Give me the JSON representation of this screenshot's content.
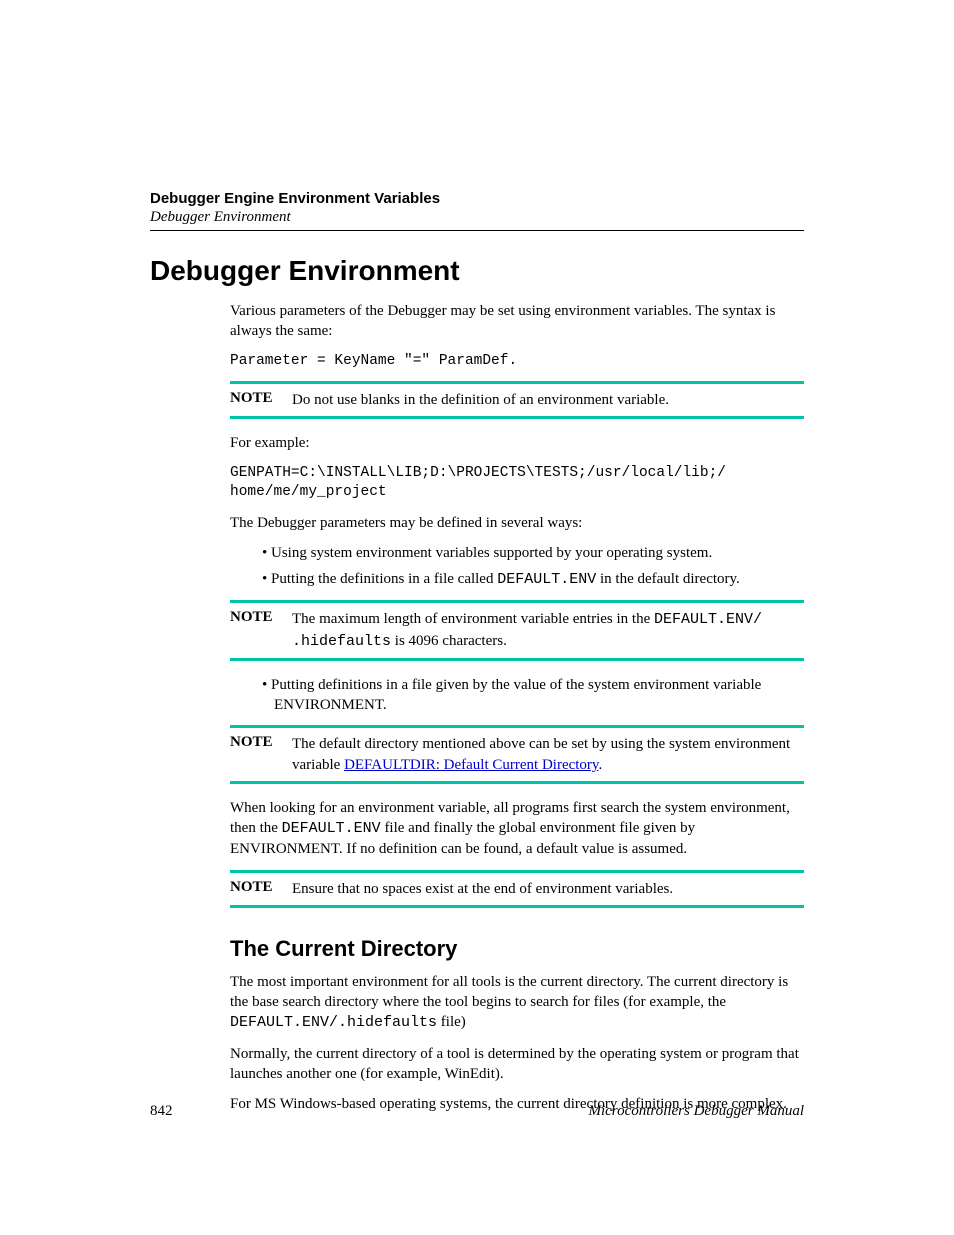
{
  "colors": {
    "note_rule": "#00c4a7",
    "link": "#0000cc",
    "text": "#000000",
    "background": "#ffffff"
  },
  "typography": {
    "body_family": "Times New Roman",
    "heading_family": "Arial",
    "code_family": "Courier New",
    "h1_size_pt": 21,
    "h2_size_pt": 17,
    "body_size_pt": 11,
    "code_size_pt": 11
  },
  "header": {
    "chapter": "Debugger Engine Environment Variables",
    "section": "Debugger Environment"
  },
  "h1": "Debugger Environment",
  "intro": "Various parameters of the Debugger may be set using environment variables. The syntax is always the same:",
  "syntax_code": "Parameter = KeyName \"=\" ParamDef.",
  "note1": {
    "label": "NOTE",
    "text": "Do not use blanks in the definition of an environment variable."
  },
  "example_lead": "For example:",
  "example_code": "GENPATH=C:\\INSTALL\\LIB;D:\\PROJECTS\\TESTS;/usr/local/lib;/\nhome/me/my_project",
  "ways_lead": "The Debugger parameters may be defined in several ways:",
  "bullets_a": {
    "0": "Using system environment variables supported by your operating system.",
    "1_pre": "Putting the definitions in a file called ",
    "1_code": "DEFAULT.ENV",
    "1_post": " in the default directory."
  },
  "note2": {
    "label": "NOTE",
    "text_pre": "The maximum length of environment variable entries in the ",
    "code": "DEFAULT.ENV/ .hidefaults",
    "text_post": " is 4096 characters."
  },
  "bullets_b": {
    "0": "Putting definitions in a file given by the value of the system environment variable ENVIRONMENT."
  },
  "note3": {
    "label": "NOTE",
    "text_pre": "The default directory mentioned above can be set by using the system environment variable ",
    "link_text": "DEFAULTDIR: Default Current Directory",
    "text_post": "."
  },
  "search_para_pre": "When looking for an environment variable, all programs first search the system environment, then the ",
  "search_para_code": "DEFAULT.ENV",
  "search_para_post": " file and finally the global environment file given by ENVIRONMENT. If no definition can be found, a default value is assumed.",
  "note4": {
    "label": "NOTE",
    "text": "Ensure that no spaces exist at the end of environment variables."
  },
  "h2": "The Current Directory",
  "curdir_p1_pre": "The most important environment for all tools is the current directory. The current directory is the base search directory where the tool begins to search for files (for example, the ",
  "curdir_p1_code": "DEFAULT.ENV/.hidefaults",
  "curdir_p1_post": " file)",
  "curdir_p2": "Normally, the current directory of a tool is determined by the operating system or program that launches another one (for example, WinEdit).",
  "curdir_p3": "For MS Windows-based operating systems, the current directory definition is more complex.",
  "footer": {
    "page": "842",
    "manual": "Microcontrollers Debugger Manual"
  }
}
